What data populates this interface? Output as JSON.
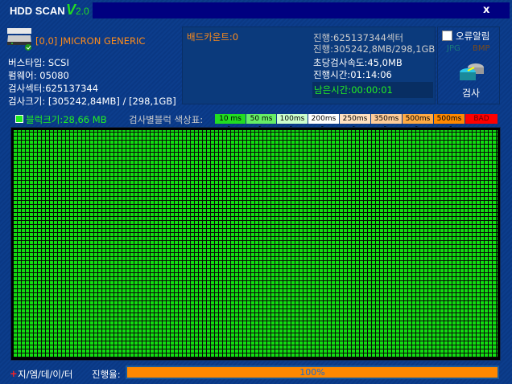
{
  "app": {
    "title": "HDD SCAN",
    "version_v": "V",
    "version_num": "2.0",
    "close_label": "x"
  },
  "device": {
    "name": "[0,0] JMICRON GENERIC",
    "icon": "hdd-icon"
  },
  "info": {
    "bus_type": "버스타입: SCSI",
    "firmware": "펌웨어: 05080",
    "sectors": "검사섹터:625137344",
    "size": "검사크기: [305242,84MB] / [298,1GB]"
  },
  "status": {
    "bad_count": "배드카운트:0",
    "progress_sectors": "진행:625137344섹터",
    "progress_size": "진행:305242,8MB/298,1GB",
    "speed": "초당검사속도:45,0MB",
    "elapsed": "진행시간:01:14:06",
    "remaining": "남은시간:00:00:01"
  },
  "options": {
    "error_alarm": "오류알림",
    "error_alarm_checked": false,
    "jpg": "JPG",
    "bmp": "BMP",
    "scan_button": "검사"
  },
  "legend": {
    "block_size": "블럭크기:28,66 MB",
    "title": "검사별블럭 색상표:",
    "items": [
      {
        "label": "10 ms >",
        "color": "#22dd22"
      },
      {
        "label": "50 ms >",
        "color": "#66ee66"
      },
      {
        "label": "100ms >",
        "color": "#ccffcc"
      },
      {
        "label": "200ms >",
        "color": "#ffffff"
      },
      {
        "label": "250ms >",
        "color": "#ffe0c0"
      },
      {
        "label": "350ms >",
        "color": "#ffcc99"
      },
      {
        "label": "500ms >",
        "color": "#ffaa44"
      },
      {
        "label": "500ms <",
        "color": "#ff8800"
      },
      {
        "label": "BAD",
        "color": "#ff0000"
      }
    ]
  },
  "footer": {
    "brand": "지/엠/데/이/터",
    "progress_label": "진행율:",
    "progress_text": "100%",
    "progress_value": 100
  }
}
